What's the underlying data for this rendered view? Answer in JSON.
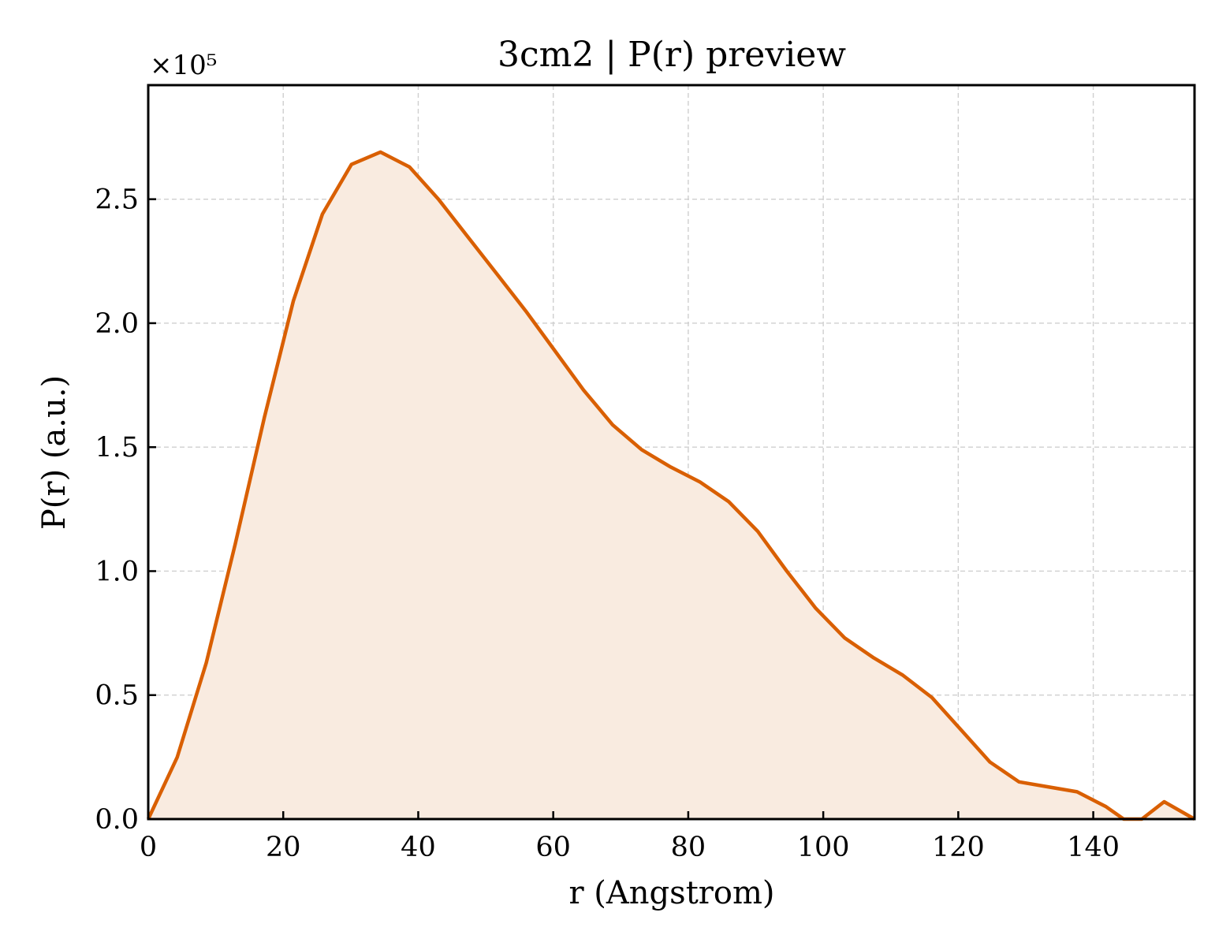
{
  "chart_data": {
    "type": "area",
    "title": "3cm2 | P(r) preview",
    "xlabel": "r (Angstrom)",
    "ylabel": "P(r) (a.u.)",
    "y_offset_text": "×10⁵",
    "xlim": [
      0,
      155
    ],
    "ylim": [
      0,
      2.96
    ],
    "x_ticks": [
      0,
      20,
      40,
      60,
      80,
      100,
      120,
      140
    ],
    "x_tick_labels": [
      "0",
      "20",
      "40",
      "60",
      "80",
      "100",
      "120",
      "140"
    ],
    "y_ticks": [
      0.0,
      0.5,
      1.0,
      1.5,
      2.0,
      2.5
    ],
    "y_tick_labels": [
      "0.0",
      "0.5",
      "1.0",
      "1.5",
      "2.0",
      "2.5"
    ],
    "grid": true,
    "series": [
      {
        "color": "#d95f02",
        "fill_color": "#f9ebe0",
        "x": [
          0,
          4.3,
          8.6,
          12.9,
          17.2,
          21.5,
          25.8,
          30.1,
          34.4,
          38.7,
          43.0,
          47.3,
          51.6,
          55.9,
          60.2,
          64.5,
          68.8,
          73.1,
          77.4,
          81.7,
          86.0,
          90.3,
          94.6,
          98.9,
          103.2,
          107.5,
          111.8,
          116.1,
          120.4,
          124.7,
          129.0,
          133.3,
          137.6,
          141.9,
          144.5,
          147.2,
          150.5,
          155
        ],
        "y": [
          0.0,
          0.25,
          0.63,
          1.11,
          1.62,
          2.09,
          2.44,
          2.64,
          2.69,
          2.63,
          2.5,
          2.35,
          2.2,
          2.05,
          1.89,
          1.73,
          1.59,
          1.49,
          1.42,
          1.36,
          1.28,
          1.16,
          1.0,
          0.85,
          0.73,
          0.65,
          0.58,
          0.49,
          0.36,
          0.23,
          0.15,
          0.13,
          0.11,
          0.05,
          0.0,
          0.0,
          0.07,
          0.0
        ]
      }
    ]
  }
}
